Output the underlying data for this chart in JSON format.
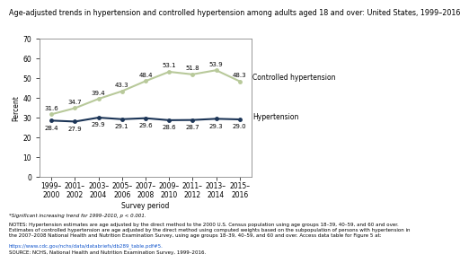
{
  "title": "Age-adjusted trends in hypertension and controlled hypertension among adults aged 18 and over: United States, 1999–2016",
  "xlabel": "Survey period",
  "ylabel": "Percent",
  "x_labels": [
    "1999–\n2000",
    "2001–\n2002",
    "2003–\n2004",
    "2005–\n2006",
    "2007–\n2008",
    "2009–\n2010",
    "2011–\n2012",
    "2013–\n2014",
    "2015–\n2016"
  ],
  "x_positions": [
    0,
    1,
    2,
    3,
    4,
    5,
    6,
    7,
    8
  ],
  "hypertension_values": [
    28.4,
    27.9,
    29.9,
    29.1,
    29.6,
    28.6,
    28.7,
    29.3,
    29.0
  ],
  "controlled_values": [
    31.6,
    34.7,
    39.4,
    43.3,
    48.4,
    53.1,
    51.8,
    53.9,
    48.3
  ],
  "hypertension_color": "#1c3557",
  "controlled_color": "#b8c99a",
  "ylim": [
    0,
    70
  ],
  "yticks": [
    0,
    10,
    20,
    30,
    40,
    50,
    60,
    70
  ],
  "footnote1": "*Significant increasing trend for 1999–2010, p < 0.001.",
  "footnote2": "NOTES: Hypertension estimates are age adjusted by the direct method to the 2000 U.S. Census population using age groups 18–39, 40–59, and 60 and over.\nEstimates of controlled hypertension are age adjusted by the direct method using computed weights based on the subpopulation of persons with hypertension in\nthe 2007–2008 National Health and Nutrition Examination Survey, using age groups 18–39, 40–59, and 60 and over. Access data table for Figure 5 at:",
  "footnote3": "https://www.cdc.gov/nchs/data/databriefs/db289_table.pdf#5.",
  "footnote4": "SOURCE: NCHS, National Health and Nutrition Examination Survey, 1999–2016.",
  "label_controlled": "Controlled hypertension",
  "label_hypertension": "Hypertension",
  "bg_color": "#ffffff",
  "title_fontsize": 5.8,
  "axis_label_fontsize": 5.5,
  "tick_fontsize": 5.5,
  "data_label_fontsize": 5.0,
  "inline_label_fontsize": 5.5,
  "footnote_fontsize": 4.0
}
